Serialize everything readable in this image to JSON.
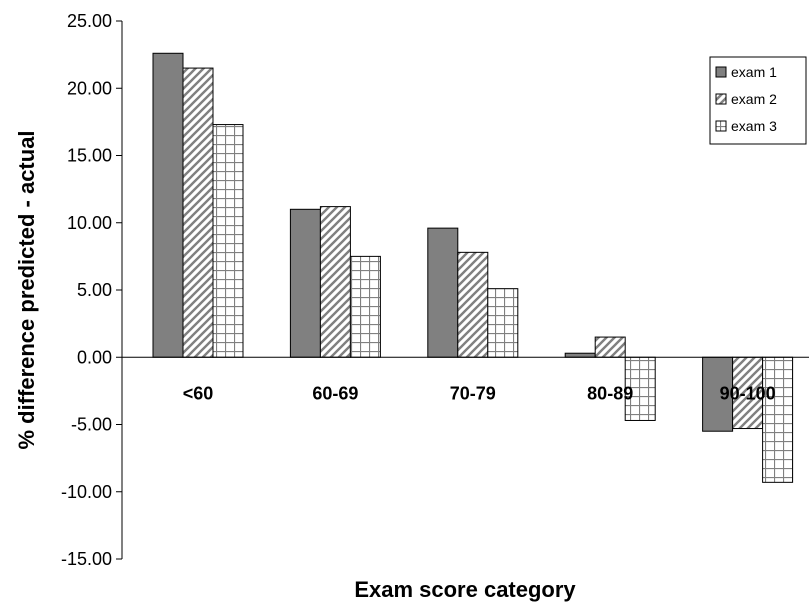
{
  "chart_data": {
    "type": "bar",
    "title": "",
    "xlabel": "Exam score category",
    "ylabel": "% difference predicted - actual",
    "ylim": [
      -15,
      25
    ],
    "ytick_step": 5,
    "ytick_labels": [
      "-15.00",
      "-10.00",
      "-5.00",
      "0.00",
      "5.00",
      "10.00",
      "15.00",
      "20.00",
      "25.00"
    ],
    "categories": [
      "<60",
      "60-69",
      "70-79",
      "80-89",
      "90-100"
    ],
    "series": [
      {
        "name": "exam 1",
        "values": [
          22.6,
          11.0,
          9.6,
          0.3,
          -5.5
        ],
        "pattern": "solid",
        "color": "#808080"
      },
      {
        "name": "exam 2",
        "values": [
          21.5,
          11.2,
          7.8,
          1.5,
          -5.3
        ],
        "pattern": "diagonal",
        "color": "#808080"
      },
      {
        "name": "exam 3",
        "values": [
          17.3,
          7.5,
          5.1,
          -4.7,
          -9.3
        ],
        "pattern": "grid",
        "color": "#808080"
      }
    ],
    "grid": false,
    "legend_position": "top-right"
  }
}
